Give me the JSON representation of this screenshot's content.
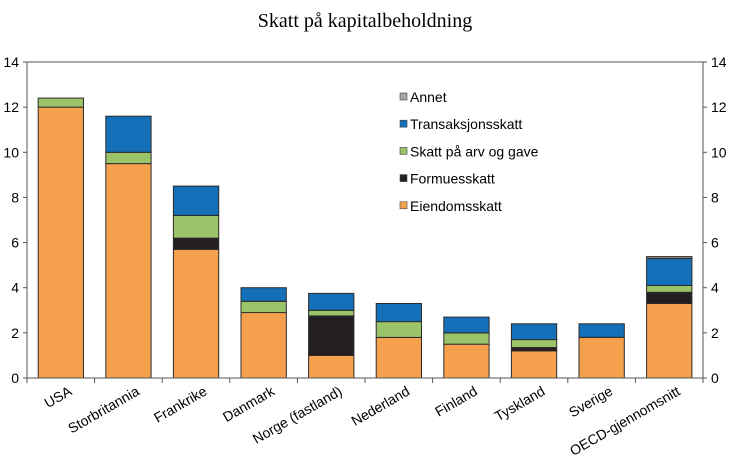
{
  "chart_data": {
    "type": "bar",
    "stacked": true,
    "title": "Skatt på kapitalbeholdning",
    "xlabel": "",
    "ylabel": "",
    "ylim": [
      0,
      14
    ],
    "yticks": [
      0,
      2,
      4,
      6,
      8,
      10,
      12,
      14
    ],
    "secondary_y_axis": true,
    "grid": false,
    "legend_position": "top-center",
    "categories": [
      "USA",
      "Storbritannia",
      "Frankrike",
      "Danmark",
      "Norge (fastland)",
      "Nederland",
      "Finland",
      "Tyskland",
      "Sverige",
      "OECD-gjennomsnitt"
    ],
    "series": [
      {
        "name": "Eiendomsskatt",
        "color": "#F4A04D",
        "values": [
          12.0,
          9.5,
          5.7,
          2.9,
          1.0,
          1.8,
          1.5,
          1.2,
          1.8,
          3.3
        ]
      },
      {
        "name": "Formuesskatt",
        "color": "#231F20",
        "values": [
          0.0,
          0.0,
          0.5,
          0.0,
          1.75,
          0.0,
          0.0,
          0.15,
          0.0,
          0.5
        ]
      },
      {
        "name": "Skatt på arv og gave",
        "color": "#9BC46A",
        "values": [
          0.4,
          0.5,
          1.0,
          0.5,
          0.25,
          0.7,
          0.5,
          0.35,
          0.0,
          0.3
        ]
      },
      {
        "name": "Transaksjonsskatt",
        "color": "#1470B8",
        "values": [
          0.0,
          1.6,
          1.3,
          0.6,
          0.75,
          0.8,
          0.7,
          0.7,
          0.6,
          1.2
        ]
      },
      {
        "name": "Annet",
        "color": "#A6A6A6",
        "values": [
          0.0,
          0.0,
          0.0,
          0.0,
          0.0,
          0.0,
          0.0,
          0.0,
          0.0,
          0.08
        ]
      }
    ],
    "legend_order": [
      "Annet",
      "Transaksjonsskatt",
      "Skatt på arv og gave",
      "Formuesskatt",
      "Eiendomsskatt"
    ]
  }
}
